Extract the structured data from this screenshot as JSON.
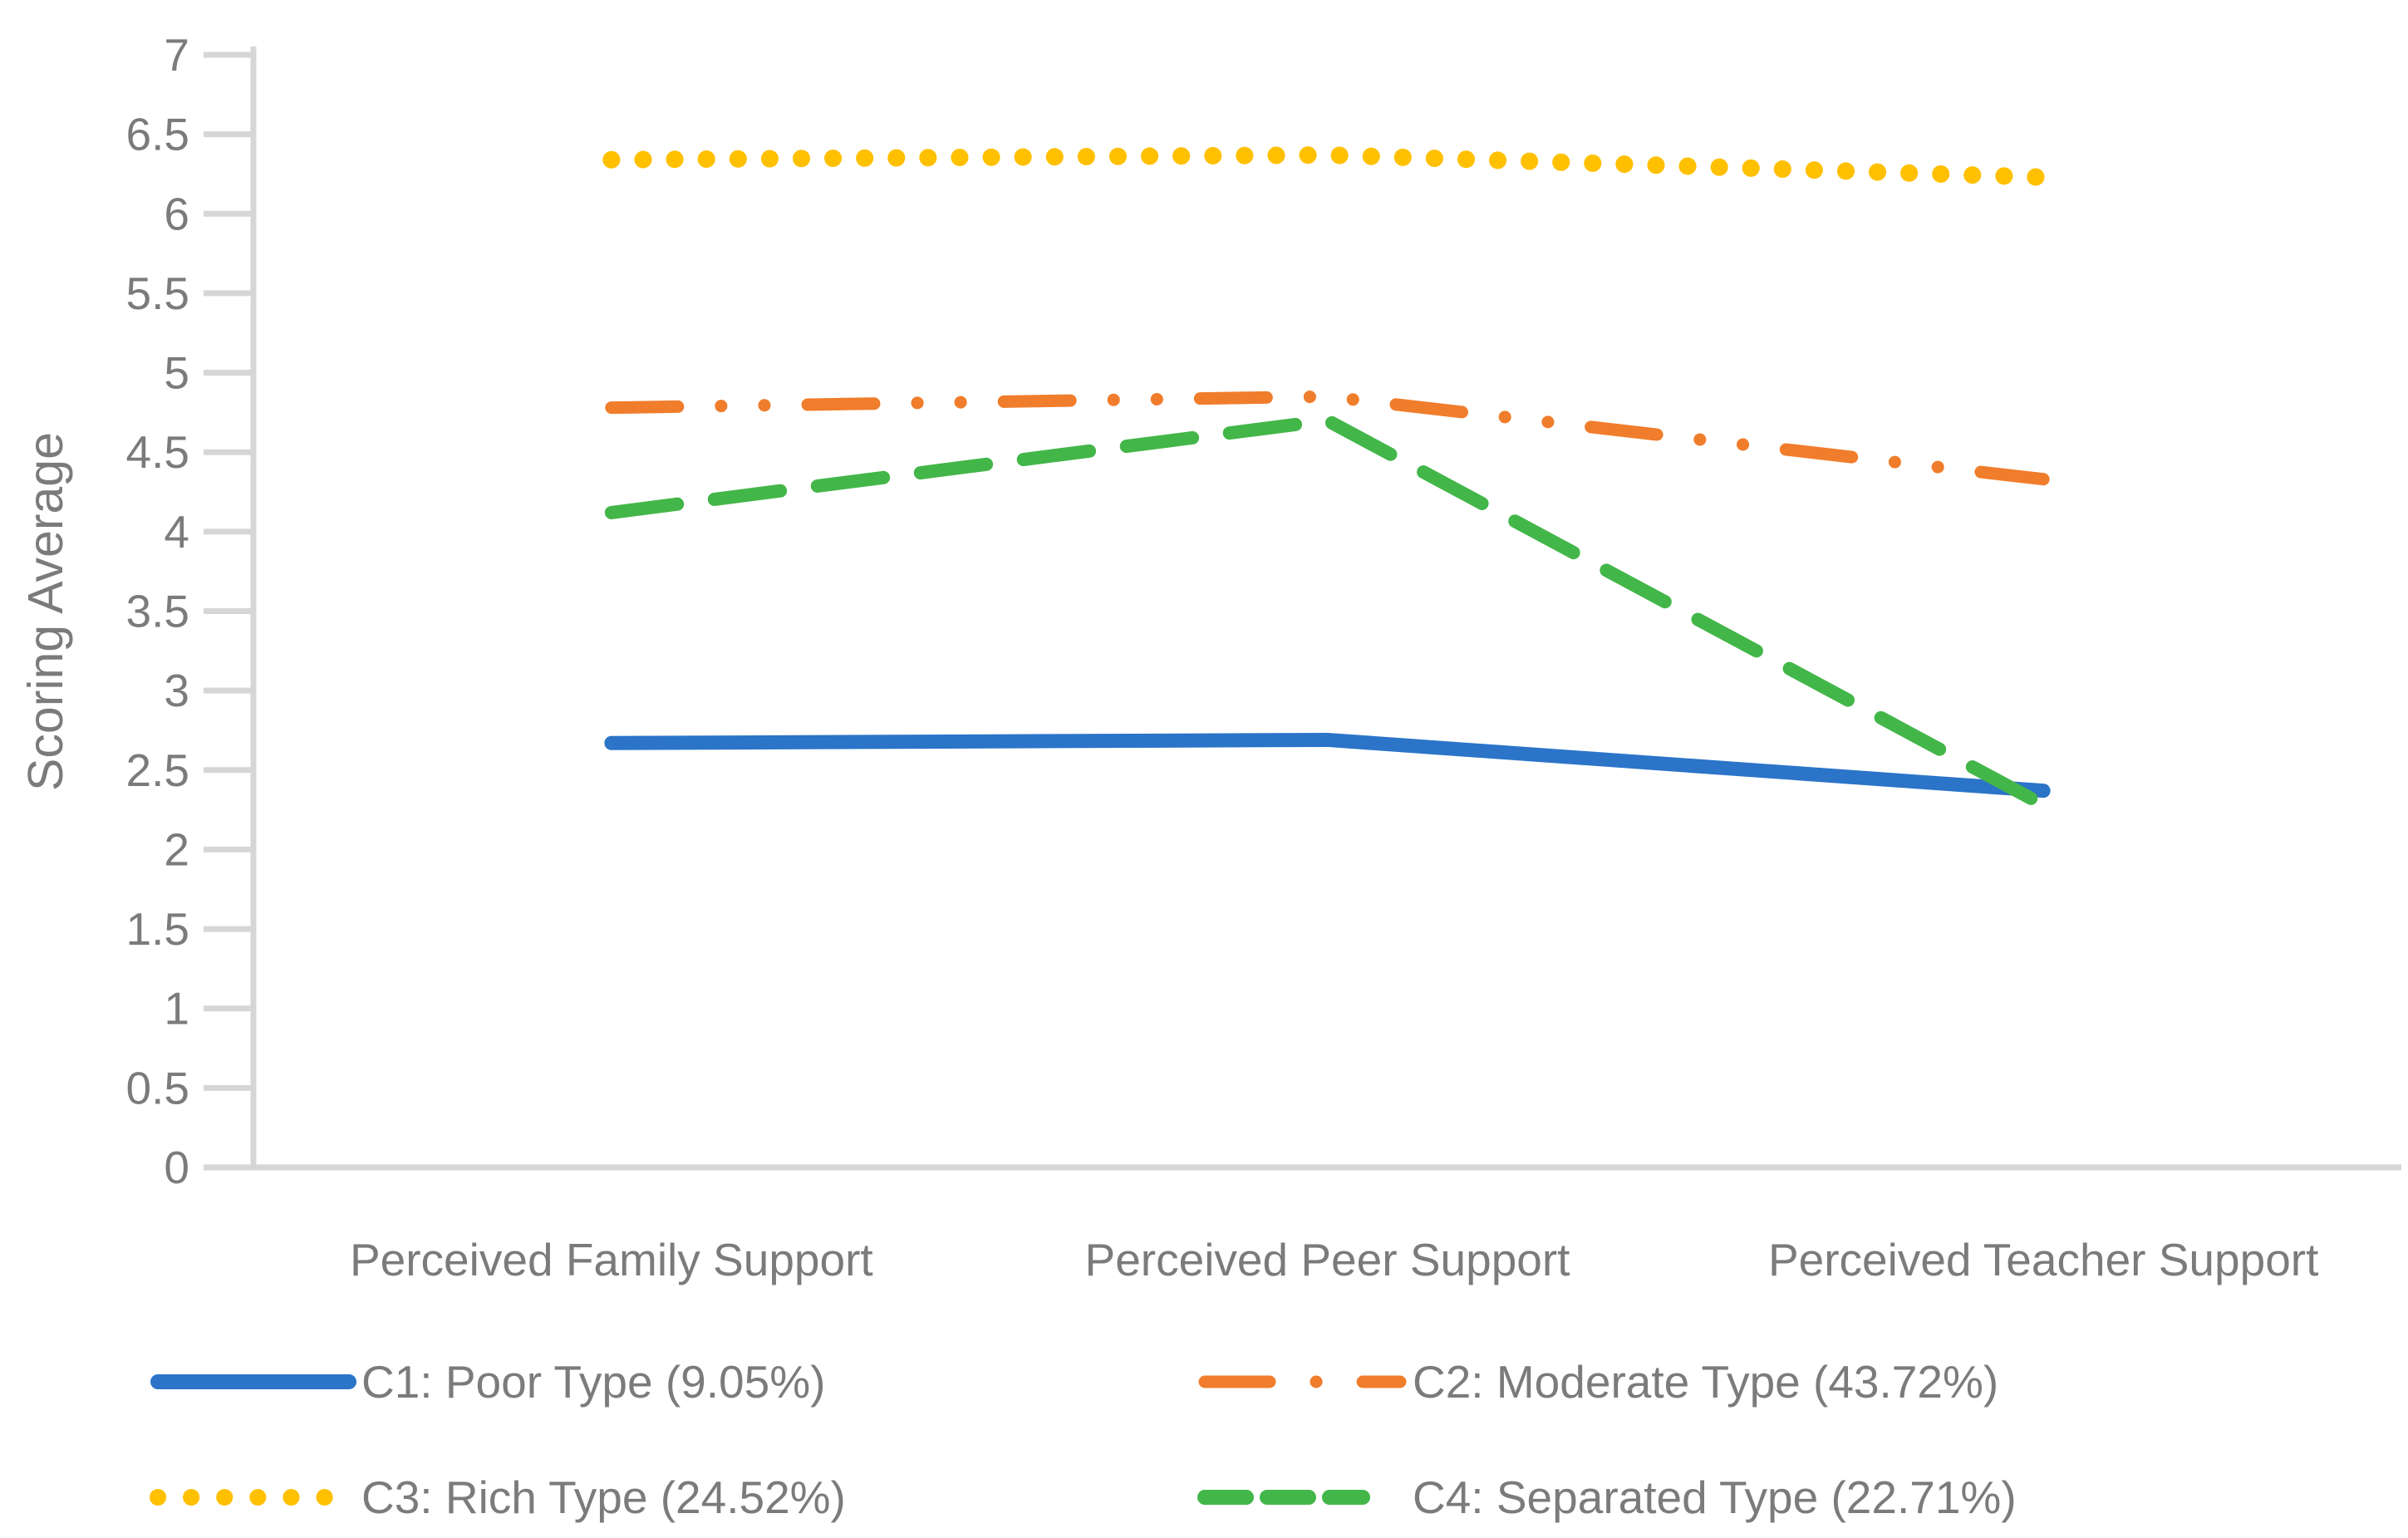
{
  "chart_data": {
    "type": "line",
    "title": "",
    "ylabel": "Scoring Average",
    "xlabel": "",
    "ylim": [
      0,
      7
    ],
    "ytick_step": 0.5,
    "grid": false,
    "legend_position": "bottom",
    "categories": [
      "Perceived Family Support",
      "Perceived Peer Support",
      "Perceived Teacher Support"
    ],
    "series": [
      {
        "name": "C1:  Poor Type (9.05%)",
        "color": "#2b74c8",
        "style": "solid",
        "values": [
          2.67,
          2.69,
          2.37
        ]
      },
      {
        "name": "C2:  Moderate Type (43.72%)",
        "color": "#f07d2c",
        "style": "long-dash-dot-dot",
        "values": [
          4.78,
          4.85,
          4.33
        ]
      },
      {
        "name": "C3:  Rich Type (24.52%)",
        "color": "#ffc000",
        "style": "dotted",
        "values": [
          6.34,
          6.37,
          6.23
        ]
      },
      {
        "name": "C4:  Separated Type (22.71%)",
        "color": "#43b649",
        "style": "dashed",
        "values": [
          4.12,
          4.7,
          2.28
        ]
      }
    ],
    "axis_color": "#d6d6d6",
    "text_color": "#7b7b7b"
  }
}
